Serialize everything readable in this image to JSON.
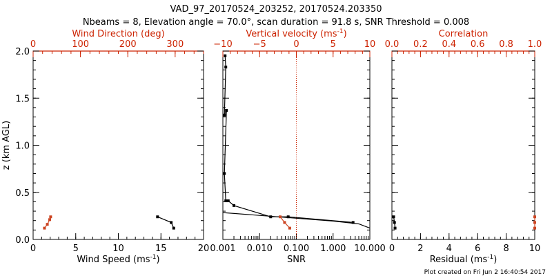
{
  "title_line1": "VAD_97_20170524_203252, 20170524.203350",
  "title_line2": "Nbeams = 8, Elevation angle = 70.0°, scan duration = 91.8 s, SNR Threshold = 0.008",
  "footer": "Plot created on Fri Jun  2 16:40:54 2017",
  "colors": {
    "axis": "#000000",
    "red": "#cc2200",
    "series_black": "#000000",
    "series_red": "#cc4422"
  },
  "chart_data": [
    {
      "type": "scatter",
      "id": "panel1",
      "xlabel": "Wind Speed (ms",
      "xlabel_sup": "-1",
      "xlabel_end": ")",
      "ylabel": "z (km AGL)",
      "xlim": [
        0,
        20
      ],
      "ylim": [
        0,
        2
      ],
      "xticks": [
        0,
        5,
        10,
        15,
        20
      ],
      "xtick_labels": [
        "0",
        "5",
        "10",
        "15",
        "20"
      ],
      "yticks": [
        0,
        0.5,
        1,
        1.5,
        2
      ],
      "ytick_labels": [
        "0.0",
        "0.5",
        "1.0",
        "1.5",
        "2.0"
      ],
      "top_axis": {
        "label": "Wind Direction (deg)",
        "lim": [
          0,
          360
        ],
        "ticks": [
          0,
          100,
          200,
          300
        ],
        "tick_labels": [
          "0",
          "100",
          "200",
          "300"
        ]
      },
      "series": [
        {
          "name": "Wind Speed",
          "axis": "bottom",
          "color": "black",
          "x": [
            14.6,
            16.2,
            16.5
          ],
          "z": [
            0.24,
            0.18,
            0.12
          ]
        },
        {
          "name": "Wind Direction",
          "axis": "top",
          "color": "red",
          "x": [
            37,
            35,
            30,
            24
          ],
          "z": [
            0.24,
            0.21,
            0.16,
            0.12
          ]
        }
      ]
    },
    {
      "type": "line",
      "id": "panel2",
      "xlabel": "SNR",
      "xscale": "log",
      "xlim": [
        0.001,
        10
      ],
      "ylim": [
        0,
        2
      ],
      "xticks": [
        0.001,
        0.01,
        0.1,
        1,
        10
      ],
      "xtick_labels": [
        "0.001",
        "0.010",
        "0.100",
        "1.000",
        "10.000"
      ],
      "top_axis": {
        "label": "Vertical velocity (ms",
        "label_sup": "-1",
        "label_end": ")",
        "lim": [
          -10,
          10
        ],
        "ticks": [
          -10,
          -5,
          0,
          5,
          10
        ],
        "tick_labels": [
          "−10",
          "−5",
          "0",
          "5",
          "10"
        ],
        "zero_line": 0
      },
      "series": [
        {
          "name": "SNR profile",
          "axis": "bottom",
          "color": "black",
          "markers": true,
          "x": [
            0.00115,
            0.0012,
            0.0011,
            0.00125,
            0.0011,
            0.0012,
            0.0014,
            0.002,
            0.02,
            0.06,
            3.5
          ],
          "z": [
            1.95,
            1.83,
            1.32,
            1.37,
            0.7,
            0.41,
            0.41,
            0.36,
            0.24,
            0.24,
            0.18
          ]
        },
        {
          "name": "SNR fit",
          "axis": "bottom",
          "color": "black",
          "markers": false,
          "x": [
            0.001,
            0.01,
            0.1,
            1,
            5,
            10
          ],
          "z": [
            0.285,
            0.255,
            0.225,
            0.195,
            0.165,
            0.12
          ]
        },
        {
          "name": "Vertical velocity",
          "axis": "top",
          "color": "red",
          "markers": true,
          "x": [
            -2.2,
            -1.6,
            -0.9
          ],
          "z": [
            0.24,
            0.18,
            0.12
          ]
        }
      ]
    },
    {
      "type": "scatter",
      "id": "panel3",
      "xlabel": "Residual (ms",
      "xlabel_sup": "-1",
      "xlabel_end": ")",
      "xlim": [
        0,
        10
      ],
      "ylim": [
        0,
        2
      ],
      "xticks": [
        0,
        2,
        4,
        6,
        8,
        10
      ],
      "xtick_labels": [
        "0",
        "2",
        "4",
        "6",
        "8",
        "10"
      ],
      "top_axis": {
        "label": "Correlation",
        "lim": [
          0,
          1
        ],
        "ticks": [
          0,
          0.2,
          0.4,
          0.6,
          0.8,
          1.0
        ],
        "tick_labels": [
          "0.0",
          "0.2",
          "0.4",
          "0.6",
          "0.8",
          "1.0"
        ]
      },
      "series": [
        {
          "name": "Residual",
          "axis": "bottom",
          "color": "black",
          "x": [
            0.12,
            0.18,
            0.22
          ],
          "z": [
            0.24,
            0.18,
            0.12
          ]
        },
        {
          "name": "Correlation",
          "axis": "top",
          "color": "red",
          "x": [
            1.0,
            1.0,
            1.0
          ],
          "z": [
            0.24,
            0.18,
            0.12
          ]
        }
      ]
    }
  ]
}
